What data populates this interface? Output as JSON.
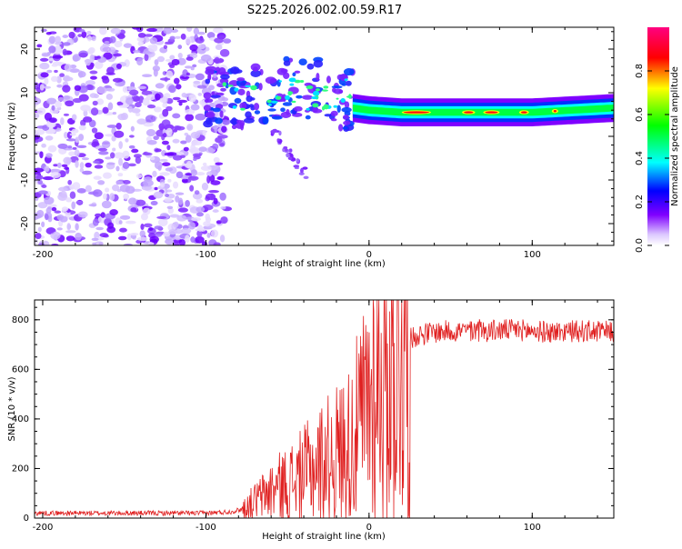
{
  "chart_data": [
    {
      "type": "heatmap",
      "title": "S225.2026.002.00.59.R17",
      "xlabel": "Height of straight line (km)",
      "ylabel": "Frequency (Hz)",
      "xlim": [
        -205,
        150
      ],
      "ylim": [
        -25,
        25
      ],
      "xticks": [
        -200,
        -100,
        0,
        100
      ],
      "yticks": [
        -20,
        -10,
        0,
        10,
        20
      ],
      "colorbar": {
        "label": "Normalized spectral amplitude",
        "range": [
          0.0,
          1.0
        ],
        "ticks": [
          "0.0",
          "0.2",
          "0.4",
          "0.6",
          "0.8"
        ],
        "tick_values": [
          0.0,
          0.2,
          0.4,
          0.6,
          0.8
        ],
        "colors": [
          "#ffffff",
          "#8000ff",
          "#0000ff",
          "#00ffff",
          "#00ff00",
          "#ffff00",
          "#ff0000",
          "#ff0080"
        ]
      },
      "ridge": [
        {
          "x": -100,
          "y": 10
        },
        {
          "x": -80,
          "y": 8
        },
        {
          "x": -60,
          "y": 11
        },
        {
          "x": -40,
          "y": 10
        },
        {
          "x": -20,
          "y": 7
        },
        {
          "x": 0,
          "y": 6
        },
        {
          "x": 20,
          "y": 5.5
        },
        {
          "x": 60,
          "y": 5.5
        },
        {
          "x": 100,
          "y": 5.5
        },
        {
          "x": 150,
          "y": 6.5
        }
      ]
    },
    {
      "type": "line",
      "xlabel": "Height of straight line (km)",
      "ylabel": "SNR (10 * v/v)",
      "xlim": [
        -205,
        150
      ],
      "ylim": [
        0,
        880
      ],
      "xticks": [
        -200,
        -100,
        0,
        100
      ],
      "yticks": [
        0,
        200,
        400,
        600,
        800
      ],
      "series": [
        {
          "name": "SNR",
          "color": "#e02020",
          "x": [
            -205,
            -150,
            -100,
            -85,
            -78,
            -72,
            -65,
            -58,
            -50,
            -42,
            -35,
            -28,
            -20,
            -12,
            -5,
            0,
            5,
            10,
            15,
            20,
            25,
            30,
            40,
            50,
            70,
            90,
            110,
            130,
            150
          ],
          "y": [
            20,
            20,
            20,
            25,
            35,
            60,
            90,
            120,
            140,
            170,
            200,
            230,
            260,
            300,
            380,
            480,
            560,
            620,
            660,
            700,
            720,
            740,
            750,
            755,
            755,
            760,
            750,
            755,
            750
          ]
        }
      ]
    }
  ]
}
